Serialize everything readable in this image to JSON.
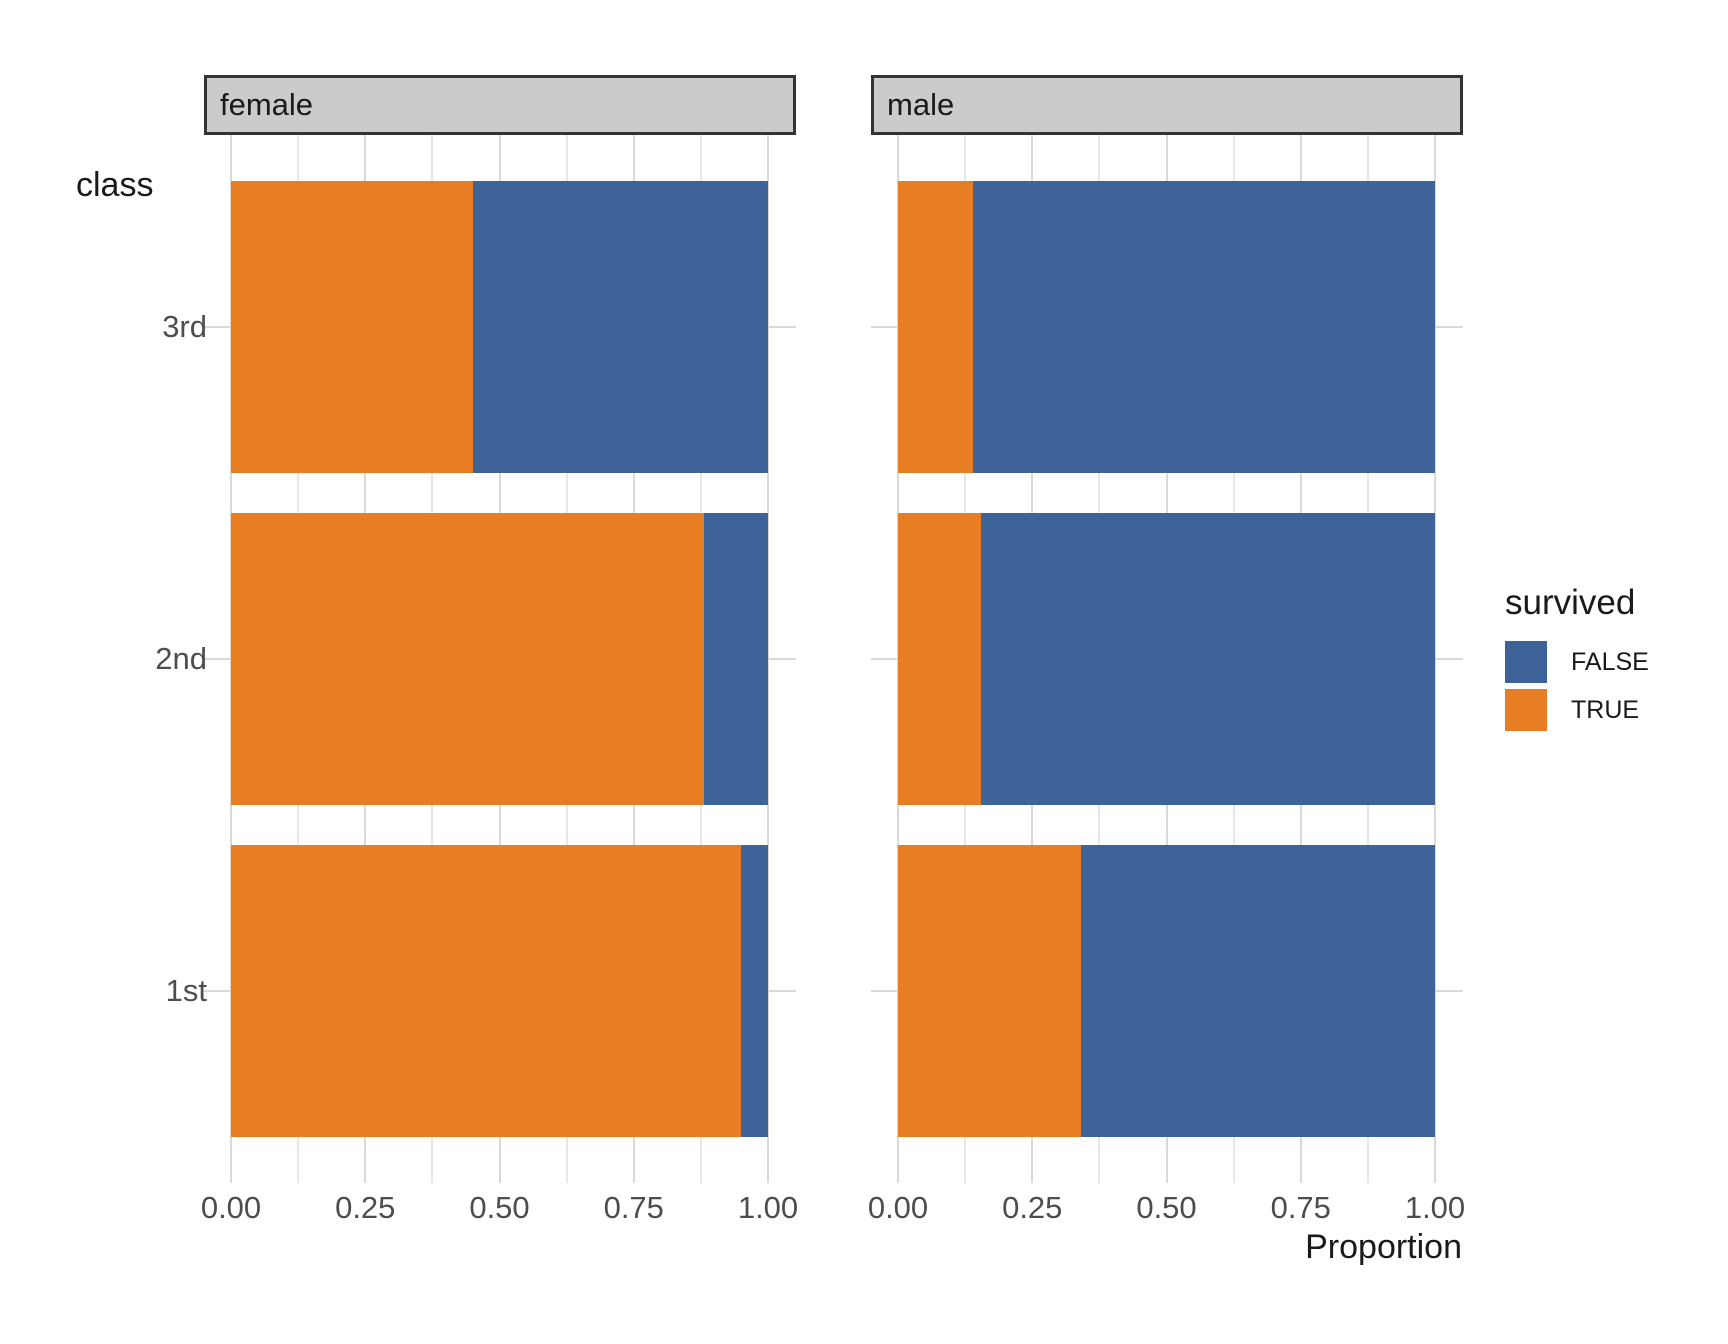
{
  "chart_data": {
    "type": "bar",
    "orientation": "horizontal",
    "stacked": true,
    "title": "",
    "xlabel": "Proportion",
    "ylabel": "class",
    "xlim": [
      0,
      1
    ],
    "x_ticks": [
      "0.00",
      "0.25",
      "0.50",
      "0.75",
      "1.00"
    ],
    "x_tick_values": [
      0,
      0.25,
      0.5,
      0.75,
      1.0
    ],
    "categories_top_to_bottom": [
      "3rd",
      "2nd",
      "1st"
    ],
    "facet_variable": "sex",
    "facets": [
      {
        "label": "female",
        "series": [
          {
            "name": "TRUE",
            "values": [
              0.45,
              0.88,
              0.95
            ]
          },
          {
            "name": "FALSE",
            "values": [
              0.55,
              0.12,
              0.05
            ]
          }
        ]
      },
      {
        "label": "male",
        "series": [
          {
            "name": "TRUE",
            "values": [
              0.14,
              0.155,
              0.34
            ]
          },
          {
            "name": "FALSE",
            "values": [
              0.86,
              0.845,
              0.66
            ]
          }
        ]
      }
    ],
    "legend": {
      "title": "survived",
      "position": "right",
      "entries": [
        {
          "label": "FALSE",
          "color": "#3E6398"
        },
        {
          "label": "TRUE",
          "color": "#E87E23"
        }
      ]
    },
    "colors": {
      "TRUE": "#E87E23",
      "FALSE": "#3E6398"
    },
    "grid": {
      "vertical_major": [
        0,
        0.25,
        0.5,
        0.75,
        1.0
      ],
      "vertical_minor": [
        0.125,
        0.375,
        0.625,
        0.875
      ],
      "horizontal_at_category_centers": true
    }
  },
  "styles": {
    "strip_background": "#CBCBCB",
    "strip_border": "#333333",
    "grid_major_color": "#D9D9D9",
    "grid_minor_color": "#E7E7E7",
    "tick_label_color": "#4D4D4D",
    "title_color": "#1A1A1A",
    "panel_background": "#FFFFFF"
  }
}
